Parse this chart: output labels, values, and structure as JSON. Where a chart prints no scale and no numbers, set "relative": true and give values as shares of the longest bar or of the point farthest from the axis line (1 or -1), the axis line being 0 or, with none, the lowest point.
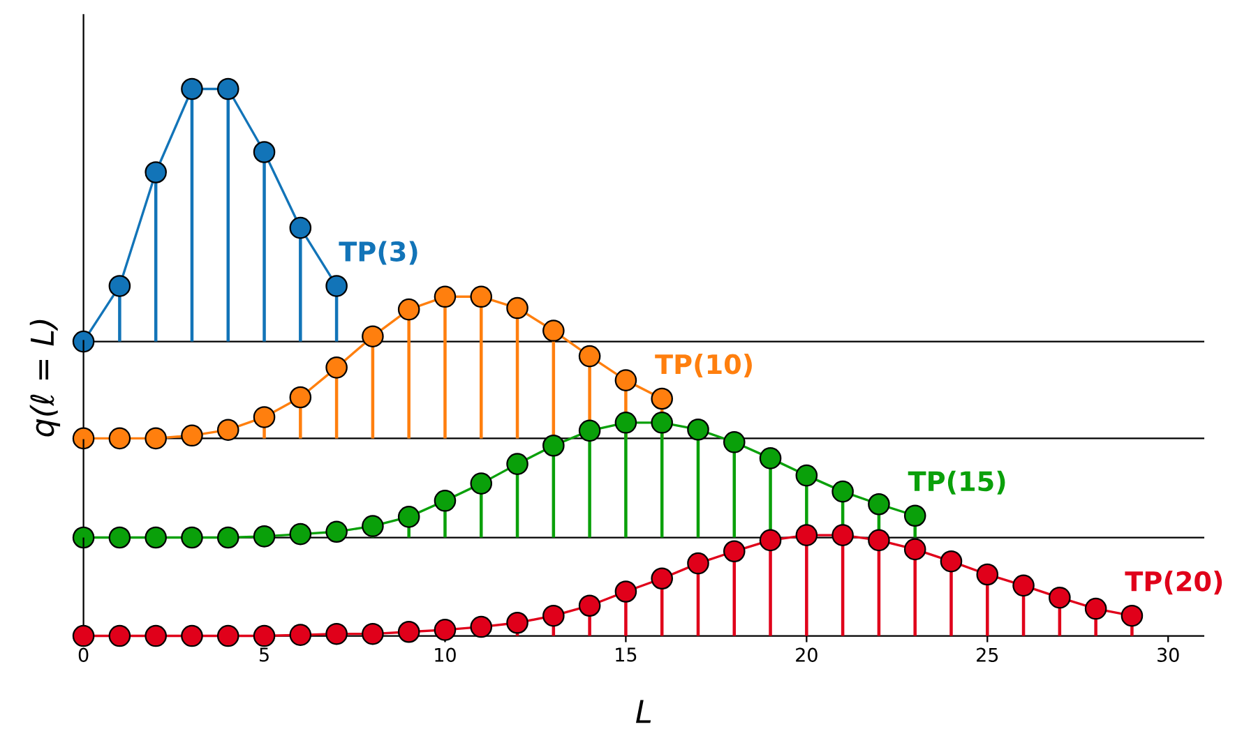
{
  "chart_data": [
    {
      "type": "lollipop",
      "relative": true,
      "xlim": [
        0,
        31
      ],
      "tick_labels": false,
      "marker": "circle",
      "series": [
        {
          "type": "line",
          "marker": "none",
          "color": "#1274b8",
          "x": [
            0,
            1,
            2,
            3,
            4,
            5,
            6,
            7
          ],
          "values": [
            0,
            0.22,
            0.67,
            1,
            1,
            0.75,
            0.45,
            0.22
          ]
        },
        {
          "name": "TP(3)",
          "color": "#1274b8",
          "x": [
            0,
            1,
            2,
            3,
            4,
            5,
            6,
            7
          ],
          "values": [
            0,
            0.22,
            0.67,
            1,
            1,
            0.75,
            0.45,
            0.22
          ]
        }
      ]
    },
    {
      "type": "lollipop",
      "relative": true,
      "xlim": [
        0,
        31
      ],
      "tick_labels": false,
      "marker": "circle",
      "ylabel": "q(ℓ = L)",
      "series": [
        {
          "type": "line",
          "marker": "none",
          "color": "#ff7f0e",
          "x": [
            0,
            1,
            2,
            3,
            4,
            5,
            6,
            7,
            8,
            9,
            10,
            11,
            12,
            13,
            14,
            15,
            16
          ],
          "values": [
            0,
            0,
            0,
            0.02,
            0.06,
            0.15,
            0.29,
            0.5,
            0.72,
            0.91,
            1,
            1,
            0.92,
            0.76,
            0.58,
            0.41,
            0.28
          ]
        },
        {
          "name": "TP(10)",
          "color": "#ff7f0e",
          "x": [
            0,
            1,
            2,
            3,
            4,
            5,
            6,
            7,
            8,
            9,
            10,
            11,
            12,
            13,
            14,
            15,
            16
          ],
          "values": [
            0,
            0,
            0,
            0.02,
            0.06,
            0.15,
            0.29,
            0.5,
            0.72,
            0.91,
            1,
            1,
            0.92,
            0.76,
            0.58,
            0.41,
            0.28
          ]
        }
      ]
    },
    {
      "type": "lollipop",
      "relative": true,
      "xlim": [
        0,
        31
      ],
      "tick_labels": false,
      "marker": "circle",
      "series": [
        {
          "type": "line",
          "marker": "none",
          "color": "#0aa00a",
          "x": [
            0,
            1,
            2,
            3,
            4,
            5,
            6,
            7,
            8,
            9,
            10,
            11,
            12,
            13,
            14,
            15,
            16,
            17,
            18,
            19,
            20,
            21,
            22,
            23
          ],
          "values": [
            0,
            0,
            0,
            0,
            0,
            0.01,
            0.03,
            0.05,
            0.1,
            0.18,
            0.32,
            0.47,
            0.64,
            0.8,
            0.93,
            1,
            1,
            0.94,
            0.83,
            0.69,
            0.54,
            0.4,
            0.29,
            0.19
          ]
        },
        {
          "name": "TP(15)",
          "color": "#0aa00a",
          "x": [
            0,
            1,
            2,
            3,
            4,
            5,
            6,
            7,
            8,
            9,
            10,
            11,
            12,
            13,
            14,
            15,
            16,
            17,
            18,
            19,
            20,
            21,
            22,
            23
          ],
          "values": [
            0,
            0,
            0,
            0,
            0,
            0.01,
            0.03,
            0.05,
            0.1,
            0.18,
            0.32,
            0.47,
            0.64,
            0.8,
            0.93,
            1,
            1,
            0.94,
            0.83,
            0.69,
            0.54,
            0.4,
            0.29,
            0.19
          ]
        }
      ]
    },
    {
      "type": "lollipop",
      "relative": true,
      "xlim": [
        0,
        31
      ],
      "xticks": [
        0,
        5,
        10,
        15,
        20,
        25,
        30
      ],
      "tick_labels": "x",
      "marker": "circle",
      "xlabel": "L",
      "series": [
        {
          "type": "line",
          "marker": "none",
          "color": "#e0001a",
          "x": [
            0,
            1,
            2,
            3,
            4,
            5,
            6,
            7,
            8,
            9,
            10,
            11,
            12,
            13,
            14,
            15,
            16,
            17,
            18,
            19,
            20,
            21,
            22,
            23,
            24,
            25,
            26,
            27,
            28,
            29
          ],
          "values": [
            0,
            0,
            0,
            0,
            0,
            0,
            0.01,
            0.02,
            0.02,
            0.04,
            0.06,
            0.09,
            0.13,
            0.2,
            0.3,
            0.44,
            0.57,
            0.72,
            0.84,
            0.95,
            1,
            1,
            0.95,
            0.86,
            0.74,
            0.61,
            0.5,
            0.38,
            0.27,
            0.2
          ]
        },
        {
          "name": "TP(20)",
          "color": "#e0001a",
          "x": [
            0,
            1,
            2,
            3,
            4,
            5,
            6,
            7,
            8,
            9,
            10,
            11,
            12,
            13,
            14,
            15,
            16,
            17,
            18,
            19,
            20,
            21,
            22,
            23,
            24,
            25,
            26,
            27,
            28,
            29
          ],
          "values": [
            0,
            0,
            0,
            0,
            0,
            0,
            0.01,
            0.02,
            0.02,
            0.04,
            0.06,
            0.09,
            0.13,
            0.2,
            0.3,
            0.44,
            0.57,
            0.72,
            0.84,
            0.95,
            1,
            1,
            0.95,
            0.86,
            0.74,
            0.61,
            0.5,
            0.38,
            0.27,
            0.2
          ]
        }
      ]
    }
  ]
}
